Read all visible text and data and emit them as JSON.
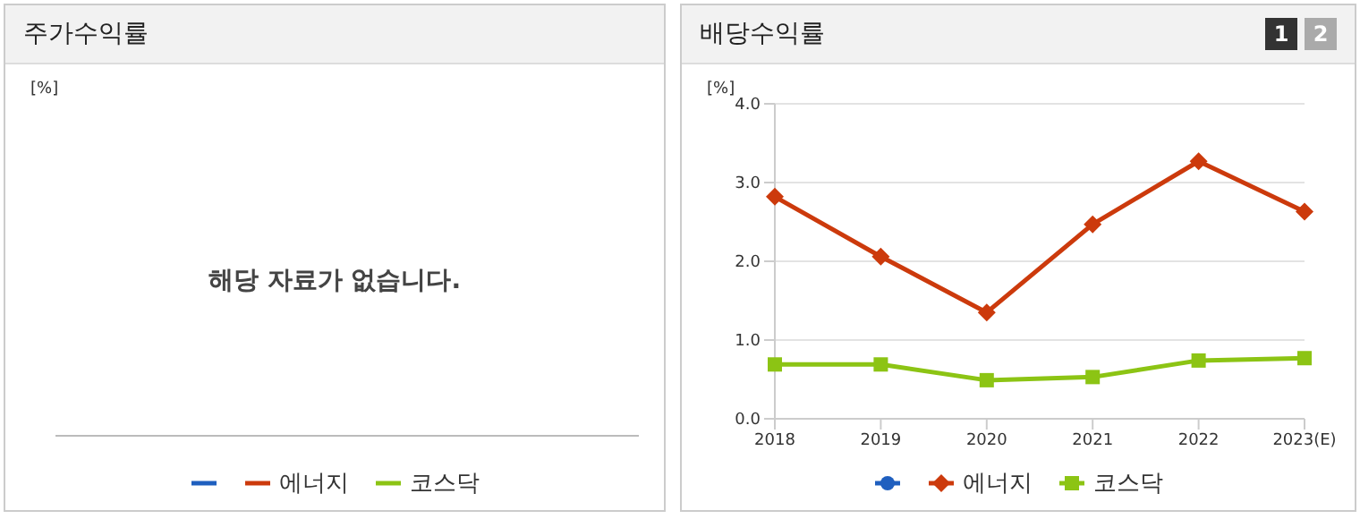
{
  "chart_data": [
    {
      "type": "other",
      "title": "주가수익률",
      "ylabel": "[%]",
      "annotations": [
        "해당 자료가 없습니다."
      ],
      "legend": "bottom",
      "series": [
        {
          "color": "#1f5fbf"
        },
        {
          "name": "에너지",
          "color": "#cc3a0c"
        },
        {
          "name": "코스닥",
          "color": "#8cc414"
        }
      ]
    },
    {
      "type": "line",
      "title": "배당수익률",
      "ylabel": "[%]",
      "annotations": [
        "1",
        "2"
      ],
      "categories": [
        "2018",
        "2019",
        "2020",
        "2021",
        "2022",
        "2023(E)"
      ],
      "ylim": [
        0,
        4
      ],
      "yticks": [
        {
          "value": 0,
          "label": "0.0"
        },
        {
          "value": 1,
          "label": "1.0"
        },
        {
          "value": 2,
          "label": "2.0"
        },
        {
          "value": 3,
          "label": "3.0"
        },
        {
          "value": 4,
          "label": "4.0"
        }
      ],
      "grid": "y",
      "legend": "bottom",
      "series": [
        {
          "color": "#1f5fbf",
          "marker": "circle",
          "values": [
            null,
            null,
            null,
            null,
            null,
            null
          ]
        },
        {
          "name": "에너지",
          "color": "#cc3a0c",
          "marker": "diamond",
          "values": [
            2.82,
            2.06,
            1.35,
            2.47,
            3.27,
            2.63
          ]
        },
        {
          "name": "코스닥",
          "color": "#8cc414",
          "marker": "square",
          "values": [
            0.69,
            0.69,
            0.49,
            0.53,
            0.74,
            0.77
          ]
        }
      ]
    }
  ]
}
